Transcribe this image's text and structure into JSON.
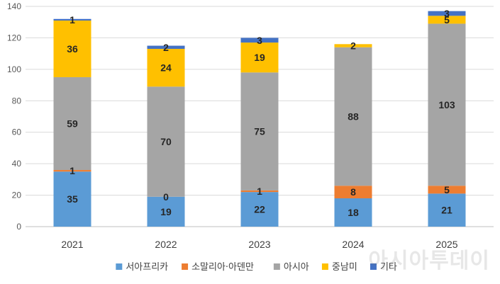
{
  "chart_data": {
    "type": "bar",
    "stacked": true,
    "categories": [
      "2021",
      "2022",
      "2023",
      "2024",
      "2025"
    ],
    "series": [
      {
        "name": "서아프리카",
        "color": "#5B9BD5",
        "values": [
          35,
          19,
          22,
          18,
          21
        ],
        "labels": [
          "35",
          "19",
          "22",
          "18",
          "21"
        ]
      },
      {
        "name": "소말리아·아덴만",
        "color": "#ED7D31",
        "values": [
          1,
          0,
          1,
          8,
          5
        ],
        "labels": [
          "1",
          "0",
          "1",
          "8",
          "5"
        ]
      },
      {
        "name": "아시아",
        "color": "#A5A5A5",
        "values": [
          59,
          70,
          75,
          88,
          103
        ],
        "labels": [
          "59",
          "70",
          "75",
          "88",
          "103"
        ]
      },
      {
        "name": "중남미",
        "color": "#FFC000",
        "values": [
          36,
          24,
          19,
          2,
          5
        ],
        "labels": [
          "36",
          "24",
          "19",
          "2",
          "5"
        ]
      },
      {
        "name": "기타",
        "color": "#4472C4",
        "values": [
          1,
          2,
          3,
          0,
          3
        ],
        "labels": [
          "1",
          "2",
          "3",
          "",
          "3"
        ]
      }
    ],
    "ylim": [
      0,
      140
    ],
    "yticks": [
      0,
      20,
      40,
      60,
      80,
      100,
      120,
      140
    ],
    "grid": true,
    "legend": "bottom",
    "title": "",
    "xlabel": "",
    "ylabel": ""
  },
  "watermark": "아시아투데이"
}
